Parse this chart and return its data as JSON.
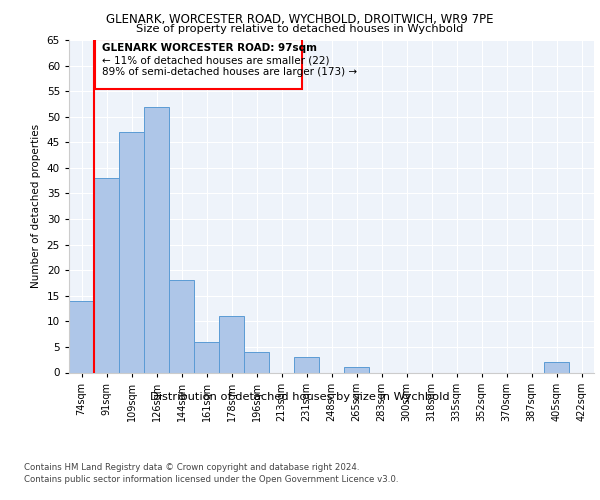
{
  "title1": "GLENARK, WORCESTER ROAD, WYCHBOLD, DROITWICH, WR9 7PE",
  "title2": "Size of property relative to detached houses in Wychbold",
  "xlabel": "Distribution of detached houses by size in Wychbold",
  "ylabel": "Number of detached properties",
  "categories": [
    "74sqm",
    "91sqm",
    "109sqm",
    "126sqm",
    "144sqm",
    "161sqm",
    "178sqm",
    "196sqm",
    "213sqm",
    "231sqm",
    "248sqm",
    "265sqm",
    "283sqm",
    "300sqm",
    "318sqm",
    "335sqm",
    "352sqm",
    "370sqm",
    "387sqm",
    "405sqm",
    "422sqm"
  ],
  "values": [
    14,
    38,
    47,
    52,
    18,
    6,
    11,
    4,
    0,
    3,
    0,
    1,
    0,
    0,
    0,
    0,
    0,
    0,
    0,
    2,
    0
  ],
  "bar_color": "#aec6e8",
  "bar_edge_color": "#5b9bd5",
  "red_line_x": 1,
  "annotation_title": "GLENARK WORCESTER ROAD: 97sqm",
  "annotation_line1": "← 11% of detached houses are smaller (22)",
  "annotation_line2": "89% of semi-detached houses are larger (173) →",
  "ylim": [
    0,
    65
  ],
  "yticks": [
    0,
    5,
    10,
    15,
    20,
    25,
    30,
    35,
    40,
    45,
    50,
    55,
    60,
    65
  ],
  "footer1": "Contains HM Land Registry data © Crown copyright and database right 2024.",
  "footer2": "Contains public sector information licensed under the Open Government Licence v3.0.",
  "plot_bg": "#eef3fa"
}
